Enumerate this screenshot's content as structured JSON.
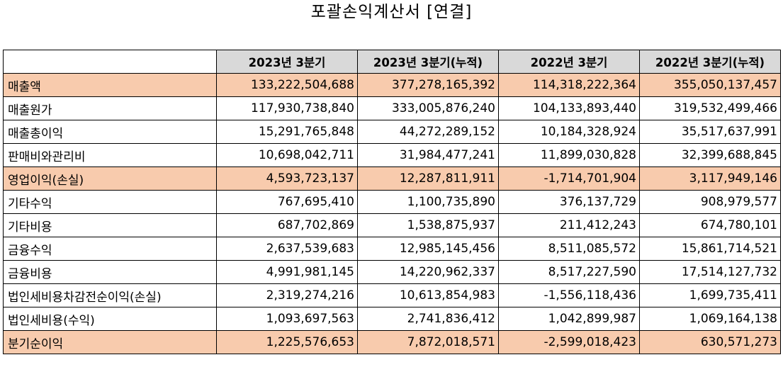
{
  "title": "포괄손익계산서 [연결]",
  "highlight_color": "#f8cbad",
  "header_color": "#d9d9d9",
  "columns": [
    "2023년 3분기",
    "2023년 3분기(누적)",
    "2022년 3분기",
    "2022년 3분기(누적)"
  ],
  "rows": [
    {
      "label": "매출액",
      "values": [
        "133,222,504,688",
        "377,278,165,392",
        "114,318,222,364",
        "355,050,137,457"
      ]
    },
    {
      "label": "매출원가",
      "values": [
        "117,930,738,840",
        "333,005,876,240",
        "104,133,893,440",
        "319,532,499,466"
      ]
    },
    {
      "label": "매출총이익",
      "values": [
        "15,291,765,848",
        "44,272,289,152",
        "10,184,328,924",
        "35,517,637,991"
      ]
    },
    {
      "label": "판매비와관리비",
      "values": [
        "10,698,042,711",
        "31,984,477,241",
        "11,899,030,828",
        "32,399,688,845"
      ]
    },
    {
      "label": "영업이익(손실)",
      "values": [
        "4,593,723,137",
        "12,287,811,911",
        "-1,714,701,904",
        "3,117,949,146"
      ]
    },
    {
      "label": "기타수익",
      "values": [
        "767,695,410",
        "1,100,735,890",
        "376,137,729",
        "908,979,577"
      ]
    },
    {
      "label": "기타비용",
      "values": [
        "687,702,869",
        "1,538,875,937",
        "211,412,243",
        "674,780,101"
      ]
    },
    {
      "label": "금융수익",
      "values": [
        "2,637,539,683",
        "12,985,145,456",
        "8,511,085,572",
        "15,861,714,521"
      ]
    },
    {
      "label": "금융비용",
      "values": [
        "4,991,981,145",
        "14,220,962,337",
        "8,517,227,590",
        "17,514,127,732"
      ]
    },
    {
      "label": "법인세비용차감전순이익(손실)",
      "values": [
        "2,319,274,216",
        "10,613,854,983",
        "-1,556,118,436",
        "1,699,735,411"
      ]
    },
    {
      "label": "법인세비용(수익)",
      "values": [
        "1,093,697,563",
        "2,741,836,412",
        "1,042,899,987",
        "1,069,164,138"
      ]
    },
    {
      "label": "분기순이익",
      "values": [
        "1,225,576,653",
        "7,872,018,571",
        "-2,599,018,423",
        "630,571,273"
      ]
    }
  ]
}
